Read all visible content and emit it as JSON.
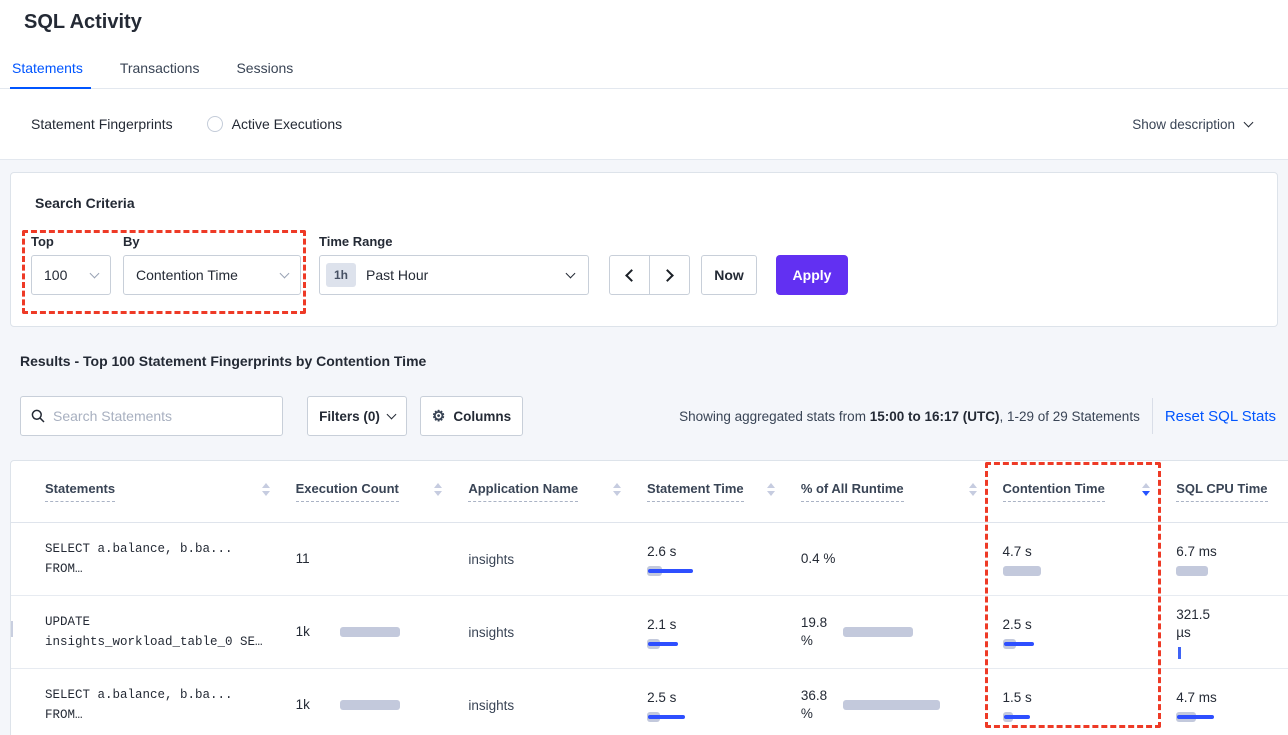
{
  "app": {
    "title": "SQL Activity"
  },
  "tabs": [
    {
      "label": "Statements"
    },
    {
      "label": "Transactions"
    },
    {
      "label": "Sessions"
    }
  ],
  "active_tab": "Statements",
  "view_toggle": {
    "options": [
      {
        "label": "Statement Fingerprints",
        "selected": true
      },
      {
        "label": "Active Executions",
        "selected": false
      }
    ],
    "show_description_label": "Show description"
  },
  "search_criteria": {
    "heading": "Search Criteria",
    "top_label": "Top",
    "top_value": "100",
    "by_label": "By",
    "by_value": "Contention Time",
    "time_range_label": "Time Range",
    "time_range_badge": "1h",
    "time_range_value": "Past Hour",
    "now_label": "Now",
    "apply_label": "Apply"
  },
  "results_toolbar": {
    "heading": "Results - Top 100 Statement Fingerprints by Contention Time",
    "search_placeholder": "Search Statements",
    "filters_label": "Filters (0)",
    "columns_label": "Columns",
    "showing_prefix": "Showing aggregated stats from ",
    "showing_bold": "15:00 to 16:17 (UTC)",
    "showing_suffix": ", 1-29 of 29 Statements",
    "reset_label": "Reset SQL Stats"
  },
  "table": {
    "columns": [
      {
        "label": "Statements",
        "sort": "none"
      },
      {
        "label": "Execution Count",
        "sort": "none"
      },
      {
        "label": "Application Name",
        "sort": "none"
      },
      {
        "label": "Statement Time",
        "sort": "none"
      },
      {
        "label": "% of All Runtime",
        "sort": "none"
      },
      {
        "label": "Contention Time",
        "sort": "desc"
      },
      {
        "label": "SQL CPU Time",
        "sort": "none"
      }
    ],
    "rows": [
      {
        "statement_lines": [
          "SELECT a.balance, b.ba...",
          "FROM…"
        ],
        "cells": {
          "execution_count": {
            "value": "11",
            "tick": "gray",
            "layout": "inline"
          },
          "application_name": {
            "value": "insights"
          },
          "statement_time": {
            "value": "2.6 s",
            "gray": 15,
            "blue": 45,
            "layout": "below"
          },
          "pct_runtime": {
            "value": "0.4 %",
            "tick": "gray",
            "layout": "inline"
          },
          "contention_time": {
            "value": "4.7 s",
            "gray": 38,
            "blue": 0,
            "layout": "below"
          },
          "sql_cpu_time": {
            "value": "6.7 ms",
            "gray": 32,
            "blue": 0,
            "layout": "below"
          }
        }
      },
      {
        "statement_lines": [
          "UPDATE",
          "insights_workload_table_0 SE…"
        ],
        "cells": {
          "execution_count": {
            "value": "1k",
            "gray": 60,
            "blue": 0,
            "layout": "inline"
          },
          "application_name": {
            "value": "insights"
          },
          "statement_time": {
            "value": "2.1 s",
            "gray": 13,
            "blue": 30,
            "layout": "below"
          },
          "pct_runtime": {
            "value": "19.8 %",
            "gray": 70,
            "blue": 0,
            "layout": "inline-wrap"
          },
          "contention_time": {
            "value": "2.5 s",
            "gray": 13,
            "blue": 30,
            "layout": "below"
          },
          "sql_cpu_time": {
            "value": "321.5 µs",
            "tick": "blue",
            "layout": "below-wrap"
          }
        }
      },
      {
        "statement_lines": [
          "SELECT a.balance, b.ba...",
          "FROM…"
        ],
        "cells": {
          "execution_count": {
            "value": "1k",
            "gray": 60,
            "blue": 0,
            "layout": "inline"
          },
          "application_name": {
            "value": "insights"
          },
          "statement_time": {
            "value": "2.5 s",
            "gray": 13,
            "blue": 37,
            "layout": "below"
          },
          "pct_runtime": {
            "value": "36.8 %",
            "gray": 97,
            "blue": 0,
            "layout": "inline-wrap"
          },
          "contention_time": {
            "value": "1.5 s",
            "gray": 10,
            "blue": 26,
            "layout": "below"
          },
          "sql_cpu_time": {
            "value": "4.7 ms",
            "gray": 20,
            "blue": 37,
            "layout": "below"
          }
        }
      }
    ]
  },
  "colors": {
    "accent_blue": "#0055ff",
    "bar_blue": "#2e4fff",
    "bar_gray": "#c3c9dc",
    "apply_purple": "#6230f2",
    "highlight_red": "#ee3a26",
    "background_gray": "#f4f6fa"
  }
}
